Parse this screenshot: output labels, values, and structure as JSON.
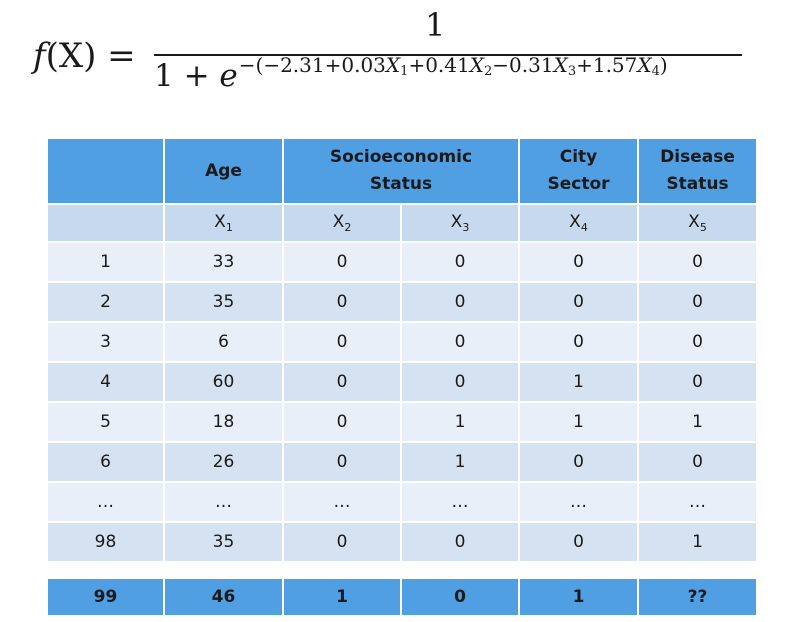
{
  "formula": {
    "lhs_f": "f",
    "lhs_rest": "(X) =",
    "numerator": "1",
    "den_base": "1 + ",
    "den_e": "e",
    "exponent": {
      "prefix": "−(−2.31+0.03",
      "t1": "X",
      "t1_sub": "1",
      "p2": "+0.41",
      "t2": "X",
      "t2_sub": "2",
      "p3": "−0.31",
      "t3": "X",
      "t3_sub": "3",
      "p4": "+1.57",
      "t4": "X",
      "t4_sub": "4",
      "suffix": ")"
    }
  },
  "table": {
    "headers": {
      "age": "Age",
      "socio_line1": "Socioeconomic",
      "socio_line2": "Status",
      "city_line1": "City",
      "city_line2": "Sector",
      "disease_line1": "Disease",
      "disease_line2": "Status"
    },
    "variables": [
      {
        "name": "X",
        "sub": "1"
      },
      {
        "name": "X",
        "sub": "2"
      },
      {
        "name": "X",
        "sub": "3"
      },
      {
        "name": "X",
        "sub": "4"
      },
      {
        "name": "X",
        "sub": "5"
      }
    ],
    "rows": [
      [
        "1",
        "33",
        "0",
        "0",
        "0",
        "0"
      ],
      [
        "2",
        "35",
        "0",
        "0",
        "0",
        "0"
      ],
      [
        "3",
        "6",
        "0",
        "0",
        "0",
        "0"
      ],
      [
        "4",
        "60",
        "0",
        "0",
        "1",
        "0"
      ],
      [
        "5",
        "18",
        "0",
        "1",
        "1",
        "1"
      ],
      [
        "6",
        "26",
        "0",
        "1",
        "0",
        "0"
      ],
      [
        "…",
        "…",
        "…",
        "…",
        "…",
        "…"
      ],
      [
        "98",
        "35",
        "0",
        "0",
        "0",
        "1"
      ]
    ],
    "query_row": [
      "99",
      "46",
      "1",
      "0",
      "1",
      "??"
    ]
  }
}
